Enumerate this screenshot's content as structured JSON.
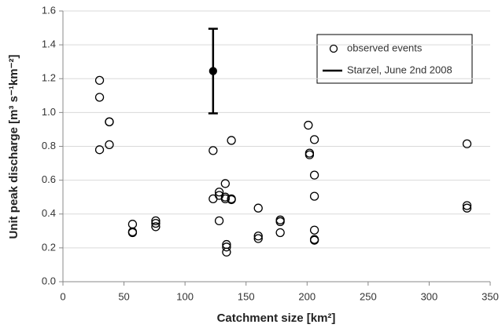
{
  "chart_data": {
    "type": "scatter",
    "xlabel": "Catchment size [km²]",
    "ylabel": "Unit peak discharge [m³ s⁻¹km⁻²]",
    "xlim": [
      0,
      350
    ],
    "xticks": [
      0,
      50,
      100,
      150,
      200,
      250,
      300,
      350
    ],
    "ylim": [
      0,
      1.6
    ],
    "yticks": [
      {
        "value": 0,
        "label": "0.0"
      },
      0.2,
      0.4,
      0.6,
      0.8,
      {
        "value": 1,
        "label": "1.0"
      },
      1.2,
      1.4,
      1.6
    ],
    "grid": "y",
    "legend": "upper right",
    "series": [
      {
        "name": "observed events",
        "color": "#000000",
        "marker": "open-circle",
        "x": [
          30,
          30,
          30,
          38,
          38,
          38,
          57,
          57,
          57,
          76,
          76,
          76,
          123,
          123,
          128,
          128,
          128,
          133,
          133,
          133,
          134,
          134,
          134,
          138,
          138,
          138,
          160,
          160,
          160,
          178,
          178,
          178,
          201,
          202,
          202,
          206,
          206,
          206,
          206,
          206,
          206,
          331,
          331,
          331
        ],
        "values": [
          1.19,
          1.09,
          0.78,
          0.945,
          0.945,
          0.81,
          0.34,
          0.29,
          0.295,
          0.36,
          0.345,
          0.325,
          0.775,
          0.49,
          0.53,
          0.51,
          0.36,
          0.58,
          0.5,
          0.49,
          0.22,
          0.205,
          0.175,
          0.835,
          0.49,
          0.485,
          0.435,
          0.27,
          0.255,
          0.365,
          0.355,
          0.29,
          0.925,
          0.76,
          0.75,
          0.84,
          0.63,
          0.505,
          0.305,
          0.25,
          0.245,
          0.815,
          0.45,
          0.435
        ]
      },
      {
        "name": "Starzel, June 2nd 2008",
        "color": "#000000",
        "marker": "filled-circle",
        "x": [
          123
        ],
        "values": [
          1.245
        ],
        "error": [
          0.25
        ]
      }
    ]
  }
}
